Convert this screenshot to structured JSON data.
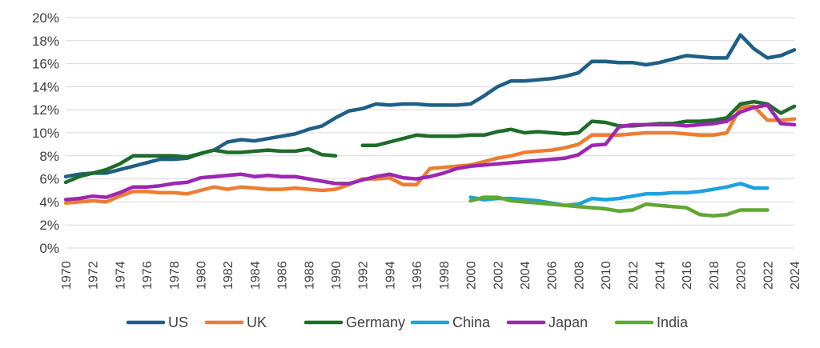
{
  "chart_data": {
    "type": "line",
    "title": "",
    "xlabel": "",
    "ylabel": "",
    "ylim": [
      0,
      20
    ],
    "yticks": [
      "0%",
      "2%",
      "4%",
      "6%",
      "8%",
      "10%",
      "12%",
      "14%",
      "16%",
      "18%",
      "20%"
    ],
    "xticks": [
      "1970",
      "1972",
      "1974",
      "1976",
      "1978",
      "1980",
      "1982",
      "1984",
      "1986",
      "1988",
      "1990",
      "1992",
      "1994",
      "1996",
      "1998",
      "2000",
      "2002",
      "2004",
      "2006",
      "2008",
      "2010",
      "2012",
      "2014",
      "2016",
      "2018",
      "2020",
      "2022",
      "2024"
    ],
    "grid": true,
    "legend_position": "bottom",
    "series": [
      {
        "name": "US",
        "color": "#1f5f85",
        "x_start": 1970,
        "values": [
          6.2,
          6.4,
          6.5,
          6.5,
          6.8,
          7.1,
          7.4,
          7.7,
          7.7,
          7.8,
          8.2,
          8.5,
          9.2,
          9.4,
          9.3,
          9.5,
          9.7,
          9.9,
          10.3,
          10.6,
          11.3,
          11.9,
          12.1,
          12.5,
          12.4,
          12.5,
          12.5,
          12.4,
          12.4,
          12.4,
          12.5,
          13.2,
          14.0,
          14.5,
          14.5,
          14.6,
          14.7,
          14.9,
          15.2,
          16.2,
          16.2,
          16.1,
          16.1,
          15.9,
          16.1,
          16.4,
          16.7,
          16.6,
          16.5,
          16.5,
          18.5,
          17.3,
          16.5,
          16.7,
          17.2
        ]
      },
      {
        "name": "UK",
        "color": "#ed7d31",
        "x_start": 1970,
        "values": [
          3.9,
          4.0,
          4.1,
          4.0,
          4.5,
          4.9,
          4.9,
          4.8,
          4.8,
          4.7,
          5.0,
          5.3,
          5.1,
          5.3,
          5.2,
          5.1,
          5.1,
          5.2,
          5.1,
          5.0,
          5.1,
          5.5,
          6.0,
          6.0,
          6.1,
          5.5,
          5.5,
          6.9,
          7.0,
          7.1,
          7.2,
          7.5,
          7.8,
          8.0,
          8.3,
          8.4,
          8.5,
          8.7,
          9.0,
          9.8,
          9.8,
          9.8,
          9.9,
          10.0,
          10.0,
          10.0,
          9.9,
          9.8,
          9.8,
          10.0,
          12.2,
          12.3,
          11.1,
          11.1,
          11.2
        ]
      },
      {
        "name": "Germany",
        "color": "#1e6b2a",
        "x_start": 1970,
        "values": [
          5.7,
          6.2,
          6.5,
          6.8,
          7.3,
          8.0,
          8.0,
          8.0,
          8.0,
          7.9,
          8.2,
          8.5,
          8.3,
          8.3,
          8.4,
          8.5,
          8.4,
          8.4,
          8.6,
          8.1,
          8.0,
          null,
          8.9,
          8.9,
          9.2,
          9.5,
          9.8,
          9.7,
          9.7,
          9.7,
          9.8,
          9.8,
          10.1,
          10.3,
          10.0,
          10.1,
          10.0,
          9.9,
          10.0,
          11.0,
          10.9,
          10.6,
          10.6,
          10.7,
          10.8,
          10.8,
          11.0,
          11.0,
          11.1,
          11.3,
          12.5,
          12.7,
          12.5,
          11.7,
          12.3
        ]
      },
      {
        "name": "China",
        "color": "#1aa3e0",
        "x_start": 2000,
        "values": [
          4.4,
          4.2,
          4.3,
          4.3,
          4.2,
          4.1,
          3.9,
          3.7,
          3.8,
          4.3,
          4.2,
          4.3,
          4.5,
          4.7,
          4.7,
          4.8,
          4.8,
          4.9,
          5.1,
          5.3,
          5.6,
          5.2,
          5.2
        ]
      },
      {
        "name": "Japan",
        "color": "#9c27b0",
        "x_start": 1970,
        "values": [
          4.2,
          4.3,
          4.5,
          4.4,
          4.8,
          5.3,
          5.3,
          5.4,
          5.6,
          5.7,
          6.1,
          6.2,
          6.3,
          6.4,
          6.2,
          6.3,
          6.2,
          6.2,
          6.0,
          5.8,
          5.6,
          5.6,
          5.9,
          6.2,
          6.4,
          6.1,
          6.0,
          6.2,
          6.5,
          6.9,
          7.1,
          7.2,
          7.3,
          7.4,
          7.5,
          7.6,
          7.7,
          7.8,
          8.1,
          8.9,
          9.0,
          10.5,
          10.7,
          10.7,
          10.7,
          10.7,
          10.6,
          10.7,
          10.8,
          11.0,
          11.8,
          12.2,
          12.4,
          10.8,
          10.7
        ]
      },
      {
        "name": "India",
        "color": "#5fa832",
        "x_start": 2000,
        "values": [
          4.1,
          4.4,
          4.4,
          4.1,
          4.0,
          3.9,
          3.8,
          3.7,
          3.6,
          3.5,
          3.4,
          3.2,
          3.3,
          3.8,
          3.7,
          3.6,
          3.5,
          2.9,
          2.8,
          2.9,
          3.3,
          3.3,
          3.3
        ]
      }
    ]
  }
}
